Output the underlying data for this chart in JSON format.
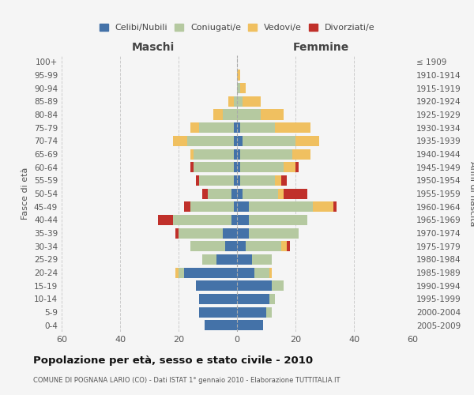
{
  "age_groups": [
    "0-4",
    "5-9",
    "10-14",
    "15-19",
    "20-24",
    "25-29",
    "30-34",
    "35-39",
    "40-44",
    "45-49",
    "50-54",
    "55-59",
    "60-64",
    "65-69",
    "70-74",
    "75-79",
    "80-84",
    "85-89",
    "90-94",
    "95-99",
    "100+"
  ],
  "birth_years": [
    "2005-2009",
    "2000-2004",
    "1995-1999",
    "1990-1994",
    "1985-1989",
    "1980-1984",
    "1975-1979",
    "1970-1974",
    "1965-1969",
    "1960-1964",
    "1955-1959",
    "1950-1954",
    "1945-1949",
    "1940-1944",
    "1935-1939",
    "1930-1934",
    "1925-1929",
    "1920-1924",
    "1915-1919",
    "1910-1914",
    "≤ 1909"
  ],
  "male_celibi": [
    11,
    13,
    13,
    14,
    18,
    7,
    4,
    5,
    2,
    1,
    2,
    1,
    1,
    1,
    1,
    1,
    0,
    0,
    0,
    0,
    0
  ],
  "male_coniugati": [
    0,
    0,
    0,
    0,
    2,
    5,
    12,
    15,
    20,
    15,
    8,
    12,
    14,
    14,
    16,
    12,
    5,
    1,
    0,
    0,
    0
  ],
  "male_vedovi": [
    0,
    0,
    0,
    0,
    1,
    0,
    0,
    0,
    0,
    0,
    0,
    0,
    0,
    1,
    5,
    3,
    3,
    2,
    0,
    0,
    0
  ],
  "male_divorziati": [
    0,
    0,
    0,
    0,
    0,
    0,
    0,
    1,
    5,
    2,
    2,
    1,
    1,
    0,
    0,
    0,
    0,
    0,
    0,
    0,
    0
  ],
  "female_nubili": [
    9,
    10,
    11,
    12,
    6,
    5,
    3,
    4,
    4,
    4,
    2,
    1,
    1,
    1,
    2,
    1,
    0,
    0,
    0,
    0,
    0
  ],
  "female_coniugate": [
    0,
    2,
    2,
    4,
    5,
    7,
    12,
    17,
    20,
    22,
    12,
    12,
    15,
    18,
    18,
    12,
    8,
    2,
    1,
    0,
    0
  ],
  "female_vedove": [
    0,
    0,
    0,
    0,
    1,
    0,
    2,
    0,
    0,
    7,
    2,
    2,
    4,
    6,
    8,
    12,
    8,
    6,
    2,
    1,
    0
  ],
  "female_divorziate": [
    0,
    0,
    0,
    0,
    0,
    0,
    1,
    0,
    0,
    1,
    8,
    2,
    1,
    0,
    0,
    0,
    0,
    0,
    0,
    0,
    0
  ],
  "colors": {
    "celibi": "#4472a8",
    "coniugati": "#b5c9a0",
    "vedovi": "#f0c060",
    "divorziati": "#c0302a"
  },
  "title": "Popolazione per età, sesso e stato civile - 2010",
  "subtitle": "COMUNE DI POGNANA LARIO (CO) - Dati ISTAT 1° gennaio 2010 - Elaborazione TUTTITALIA.IT",
  "xlabel_left": "Maschi",
  "xlabel_right": "Femmine",
  "ylabel_left": "Fasce di età",
  "ylabel_right": "Anni di nascita",
  "xlim": 60,
  "background_color": "#f5f5f5",
  "grid_color": "#cccccc"
}
